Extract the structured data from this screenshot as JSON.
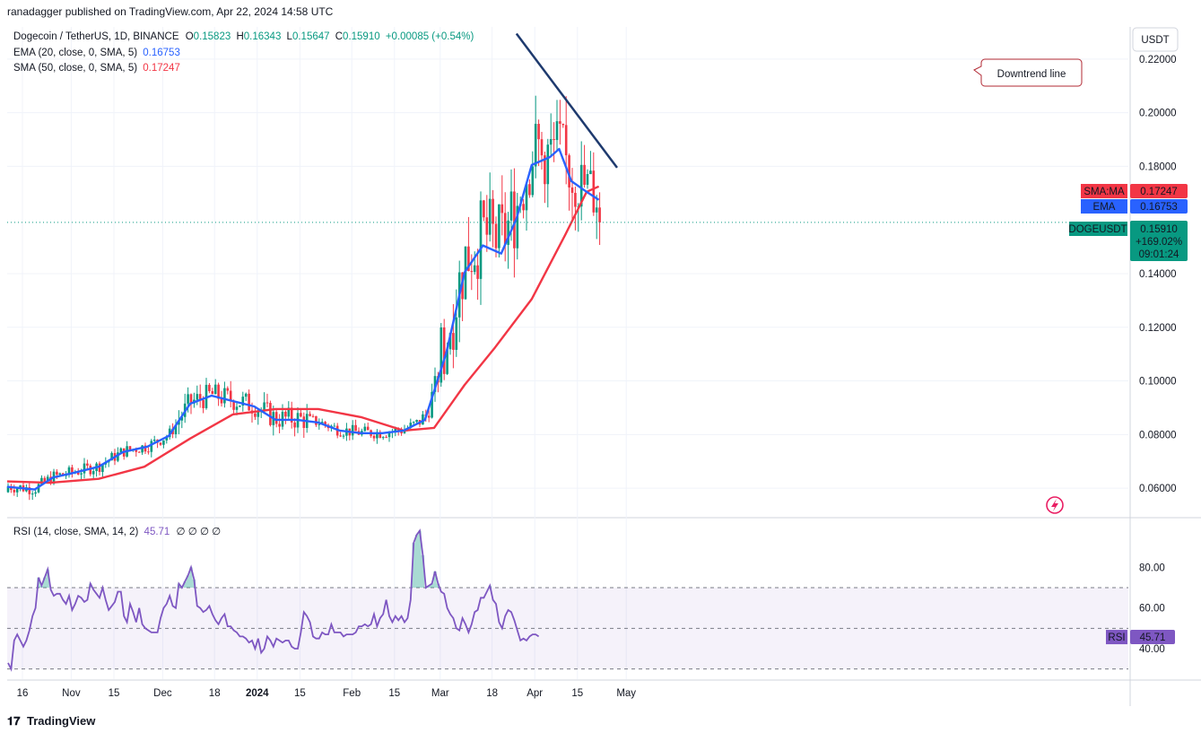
{
  "header": {
    "published_by": "ranadagger published on TradingView.com, Apr 22, 2024 14:58 UTC"
  },
  "legend": {
    "symbol": "Dogecoin / TetherUS, 1D, BINANCE",
    "o_label": "O",
    "o_value": "0.15823",
    "h_label": "H",
    "h_value": "0.16343",
    "l_label": "L",
    "l_value": "0.15647",
    "c_label": "C",
    "c_value": "0.15910",
    "change": "+0.00085 (+0.54%)",
    "ema_label": "EMA (20, close, 0, SMA, 5)",
    "ema_value": "0.16753",
    "sma_label": "SMA (50, close, 0, SMA, 5)",
    "sma_value": "0.17247",
    "rsi_label": "RSI (14, close, SMA, 14, 2)",
    "rsi_value": "45.71",
    "rsi_extra": "∅ ∅ ∅ ∅"
  },
  "colors": {
    "up": "#089981",
    "down": "#f23645",
    "ema": "#2962ff",
    "sma": "#f23645",
    "rsi": "#7e57c2",
    "trend": "#1e3a6e",
    "price_tag": "#089981"
  },
  "price_axis": {
    "currency": "USDT",
    "ticks": [
      "0.22000",
      "0.20000",
      "0.18000",
      "0.14000",
      "0.12000",
      "0.10000",
      "0.08000",
      "0.06000"
    ]
  },
  "rsi_axis": {
    "ticks": [
      "80.00",
      "60.00",
      "40.00"
    ]
  },
  "tags": {
    "sma_name": "SMA:MA",
    "sma_value": "0.17247",
    "ema_name": "EMA",
    "ema_value": "0.16753",
    "symbol": "DOGEUSDT",
    "price": "0.15910",
    "change_pct": "+169.02%",
    "countdown": "09:01:24",
    "rsi_name": "RSI",
    "rsi_value": "45.71"
  },
  "annotation": {
    "text": "Downtrend line"
  },
  "time_axis": [
    "16",
    "Nov",
    "15",
    "Dec",
    "18",
    "2024",
    "15",
    "Feb",
    "15",
    "Mar",
    "18",
    "Apr",
    "15",
    "May"
  ],
  "brand": "TradingView",
  "chart_data": {
    "type": "line",
    "title": "Dogecoin / TetherUS, 1D, BINANCE",
    "price_range": [
      0.049,
      0.232
    ],
    "series": [
      {
        "name": "EMA (20, close, 0, SMA, 5)",
        "points": [
          [
            "2023-10-11",
            0.0605
          ],
          [
            "2023-10-20",
            0.0595
          ],
          [
            "2023-10-26",
            0.064
          ],
          [
            "2023-11-01",
            0.0655
          ],
          [
            "2023-11-10",
            0.068
          ],
          [
            "2023-11-18",
            0.0735
          ],
          [
            "2023-11-26",
            0.0755
          ],
          [
            "2023-12-03",
            0.0795
          ],
          [
            "2023-12-10",
            0.0915
          ],
          [
            "2023-12-17",
            0.0945
          ],
          [
            "2023-12-24",
            0.0925
          ],
          [
            "2023-12-31",
            0.0905
          ],
          [
            "2024-01-07",
            0.0855
          ],
          [
            "2024-01-14",
            0.0855
          ],
          [
            "2024-01-21",
            0.0845
          ],
          [
            "2024-01-28",
            0.0815
          ],
          [
            "2024-02-04",
            0.0805
          ],
          [
            "2024-02-11",
            0.0805
          ],
          [
            "2024-02-18",
            0.0815
          ],
          [
            "2024-02-25",
            0.0855
          ],
          [
            "2024-03-03",
            0.1105
          ],
          [
            "2024-03-09",
            0.1405
          ],
          [
            "2024-03-15",
            0.1505
          ],
          [
            "2024-03-21",
            0.1475
          ],
          [
            "2024-03-26",
            0.1605
          ],
          [
            "2024-03-31",
            0.1805
          ],
          [
            "2024-04-06",
            0.1835
          ],
          [
            "2024-04-09",
            0.1865
          ],
          [
            "2024-04-13",
            0.1745
          ],
          [
            "2024-04-18",
            0.1705
          ],
          [
            "2024-04-22",
            0.1675
          ]
        ]
      },
      {
        "name": "SMA (50, close, 0, SMA, 5)",
        "points": [
          [
            "2023-10-11",
            0.0625
          ],
          [
            "2023-10-25",
            0.062
          ],
          [
            "2023-11-10",
            0.0635
          ],
          [
            "2023-11-25",
            0.068
          ],
          [
            "2023-12-10",
            0.0785
          ],
          [
            "2023-12-24",
            0.0875
          ],
          [
            "2024-01-07",
            0.0895
          ],
          [
            "2024-01-21",
            0.0895
          ],
          [
            "2024-02-04",
            0.0865
          ],
          [
            "2024-02-18",
            0.0815
          ],
          [
            "2024-02-28",
            0.0825
          ],
          [
            "2024-03-09",
            0.0985
          ],
          [
            "2024-03-19",
            0.1125
          ],
          [
            "2024-03-31",
            0.1305
          ],
          [
            "2024-04-11",
            0.1545
          ],
          [
            "2024-04-18",
            0.1705
          ],
          [
            "2024-04-22",
            0.1725
          ]
        ]
      }
    ],
    "annotations": [
      "Downtrend line"
    ],
    "rsi": {
      "range": [
        25,
        100
      ],
      "levels": [
        70,
        50,
        30
      ],
      "values": [
        33,
        30,
        44,
        47,
        44,
        41,
        44,
        49,
        56,
        60,
        75,
        71,
        75,
        79,
        69,
        66,
        67,
        67,
        64,
        62,
        66,
        59,
        62,
        66,
        65,
        63,
        64,
        72,
        69,
        67,
        65,
        70,
        64,
        59,
        61,
        63,
        68,
        68,
        56,
        53,
        62,
        58,
        53,
        60,
        52,
        50,
        49,
        48,
        48,
        48,
        55,
        60,
        62,
        66,
        61,
        60,
        72,
        70,
        73,
        76,
        80,
        74,
        61,
        60,
        58,
        59,
        61,
        57,
        54,
        52,
        55,
        57,
        51,
        51,
        49,
        48,
        46,
        46,
        45,
        43,
        44,
        40,
        45,
        38,
        40,
        46,
        44,
        41,
        45,
        44,
        43,
        44,
        44,
        41,
        40,
        40,
        48,
        58,
        56,
        53,
        46,
        45,
        45,
        48,
        47,
        47,
        52,
        48,
        48,
        48,
        46,
        47,
        47,
        47,
        48,
        51,
        51,
        52,
        51,
        52,
        57,
        51,
        55,
        57,
        64,
        56,
        53,
        56,
        54,
        56,
        53,
        55,
        64,
        92,
        96,
        98,
        86,
        70,
        71,
        72,
        78,
        72,
        68,
        67,
        60,
        57,
        55,
        50,
        49,
        55,
        52,
        48,
        52,
        58,
        59,
        65,
        65,
        68,
        71,
        64,
        62,
        53,
        50,
        56,
        59,
        58,
        54,
        49,
        44,
        45,
        44,
        46,
        47,
        47,
        46
      ]
    }
  }
}
